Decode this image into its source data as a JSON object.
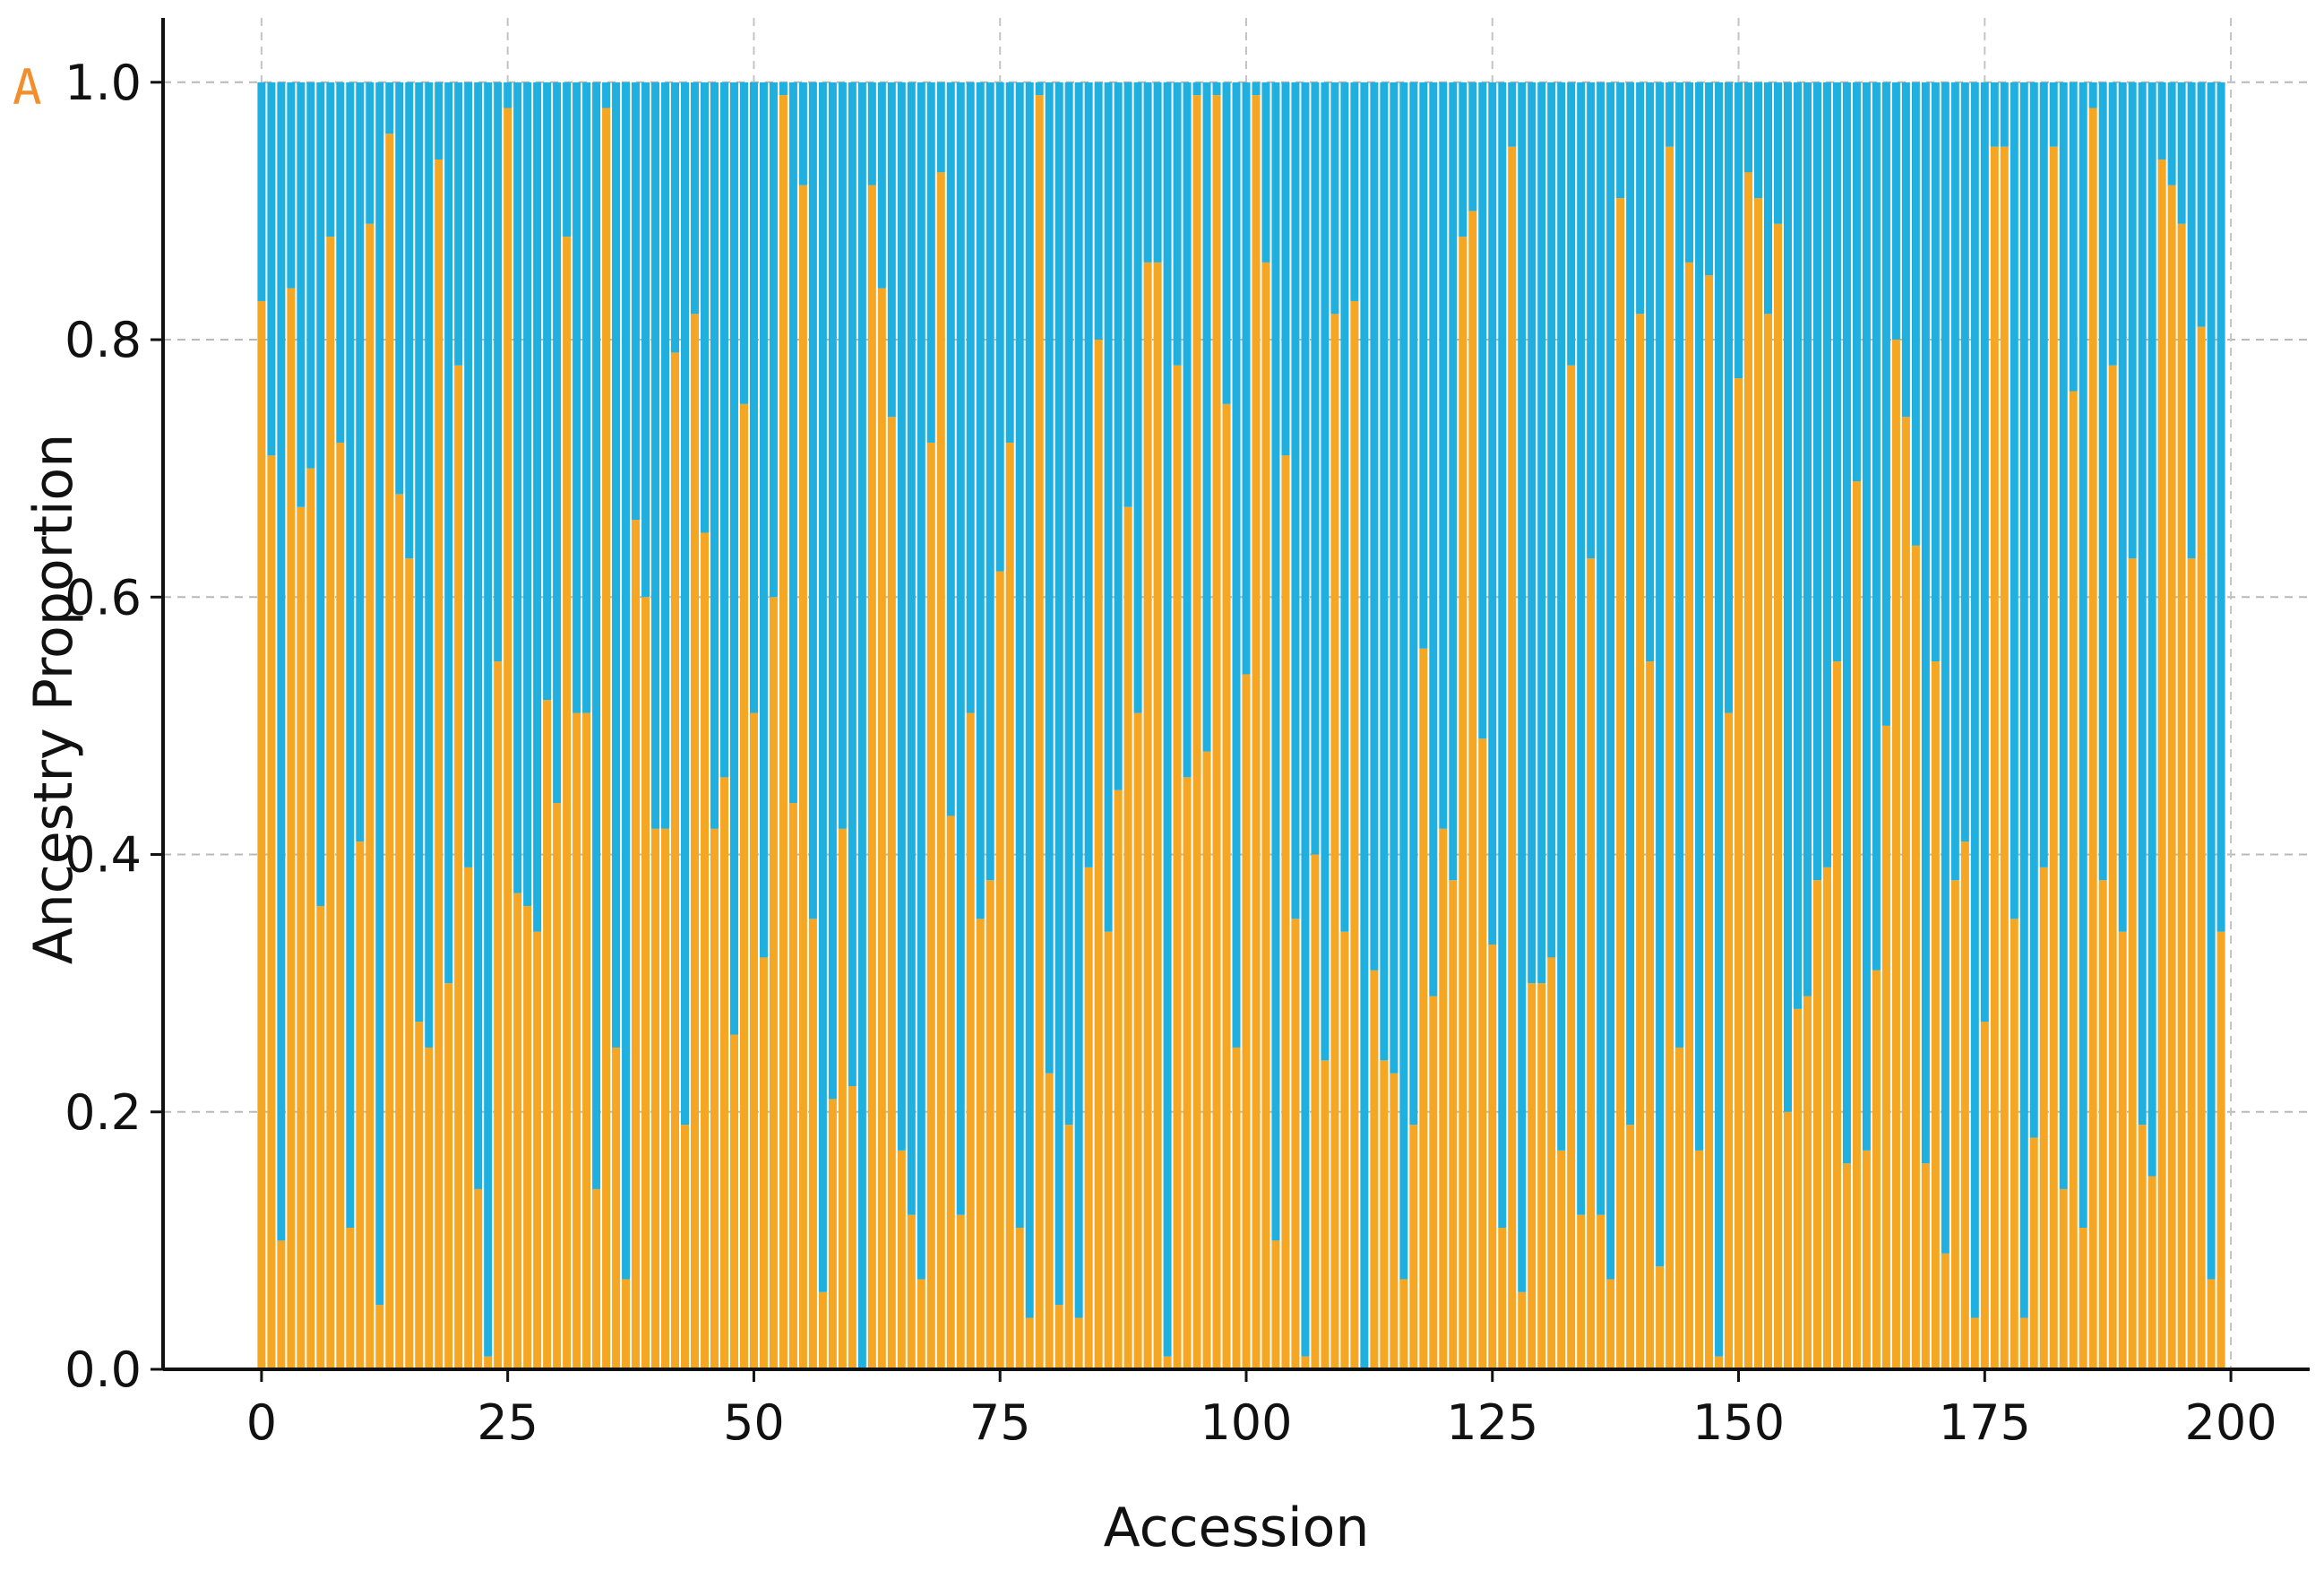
{
  "panel_label": "A",
  "chart_data": {
    "type": "bar",
    "stacked": true,
    "xlabel": "Accession",
    "ylabel": "Ancestry Proportion",
    "xlim": [
      -10,
      208
    ],
    "ylim": [
      0,
      1.05
    ],
    "xticks": [
      0,
      25,
      50,
      75,
      100,
      125,
      150,
      175,
      200
    ],
    "yticks": [
      0.0,
      0.2,
      0.4,
      0.6,
      0.8,
      1.0
    ],
    "ytick_labels": [
      "0.0",
      "0.2",
      "0.4",
      "0.6",
      "0.8",
      "1.0"
    ],
    "grid": true,
    "colors": {
      "series_1": "#f5a623",
      "series_2": "#1fb0e0"
    },
    "x": [
      0,
      1,
      2,
      3,
      4,
      5,
      6,
      7,
      8,
      9,
      10,
      11,
      12,
      13,
      14,
      15,
      16,
      17,
      18,
      19,
      20,
      21,
      22,
      23,
      24,
      25,
      26,
      27,
      28,
      29,
      30,
      31,
      32,
      33,
      34,
      35,
      36,
      37,
      38,
      39,
      40,
      41,
      42,
      43,
      44,
      45,
      46,
      47,
      48,
      49,
      50,
      51,
      52,
      53,
      54,
      55,
      56,
      57,
      58,
      59,
      60,
      61,
      62,
      63,
      64,
      65,
      66,
      67,
      68,
      69,
      70,
      71,
      72,
      73,
      74,
      75,
      76,
      77,
      78,
      79,
      80,
      81,
      82,
      83,
      84,
      85,
      86,
      87,
      88,
      89,
      90,
      91,
      92,
      93,
      94,
      95,
      96,
      97,
      98,
      99,
      100,
      101,
      102,
      103,
      104,
      105,
      106,
      107,
      108,
      109,
      110,
      111,
      112,
      113,
      114,
      115,
      116,
      117,
      118,
      119,
      120,
      121,
      122,
      123,
      124,
      125,
      126,
      127,
      128,
      129,
      130,
      131,
      132,
      133,
      134,
      135,
      136,
      137,
      138,
      139,
      140,
      141,
      142,
      143,
      144,
      145,
      146,
      147,
      148,
      149,
      150,
      151,
      152,
      153,
      154,
      155,
      156,
      157,
      158,
      159,
      160,
      161,
      162,
      163,
      164,
      165,
      166,
      167,
      168,
      169,
      170,
      171,
      172,
      173,
      174,
      175,
      176,
      177,
      178,
      179,
      180,
      181,
      182,
      183,
      184,
      185,
      186,
      187,
      188,
      189,
      190,
      191,
      192,
      193,
      194,
      195,
      196,
      197,
      198,
      199
    ],
    "series": [
      {
        "values": [
          0.83,
          0.71,
          0.1,
          0.84,
          0.67,
          0.7,
          0.36,
          0.88,
          0.72,
          0.11,
          0.41,
          0.89,
          0.05,
          0.96,
          0.68,
          0.63,
          0.27,
          0.25,
          0.94,
          0.3,
          0.78,
          0.39,
          0.14,
          0.01,
          0.55,
          0.98,
          0.37,
          0.36,
          0.34,
          0.52,
          0.44,
          0.88,
          0.51,
          0.51,
          0.14,
          0.98,
          0.25,
          0.07,
          0.66,
          0.6,
          0.42,
          0.42,
          0.79,
          0.19,
          0.82,
          0.65,
          0.42,
          0.46,
          0.26,
          0.75,
          0.51,
          0.32,
          0.6,
          0.99,
          0.44,
          0.92,
          0.35,
          0.06,
          0.21,
          0.42,
          0.22,
          0.0,
          0.92,
          0.84,
          0.74,
          0.17,
          0.12,
          0.07,
          0.72,
          0.93,
          0.43,
          0.12,
          0.51,
          0.35,
          0.38,
          0.62,
          0.72,
          0.11,
          0.04,
          0.99,
          0.23,
          0.05,
          0.19,
          0.04,
          0.39,
          0.8,
          0.34,
          0.45,
          0.67,
          0.51,
          0.86,
          0.86,
          0.01,
          0.78,
          0.46,
          0.99,
          0.48,
          0.99,
          0.75,
          0.25,
          0.54,
          0.99,
          0.86,
          0.1,
          0.71,
          0.35,
          0.01,
          0.4,
          0.24,
          0.82,
          0.34,
          0.83,
          0.0,
          0.31,
          0.24,
          0.23,
          0.07,
          0.19,
          0.56,
          0.29,
          0.42,
          0.38,
          0.88,
          0.9,
          0.49,
          0.33,
          0.11,
          0.95,
          0.06,
          0.3,
          0.3,
          0.32,
          0.17,
          0.78,
          0.12,
          0.63,
          0.12,
          0.07,
          0.91,
          0.19,
          0.82,
          0.55,
          0.08,
          0.95,
          0.25,
          0.86,
          0.17,
          0.85,
          0.01,
          0.51,
          0.77,
          0.93,
          0.91,
          0.82,
          0.89,
          0.2,
          0.28,
          0.29,
          0.38,
          0.39,
          0.55,
          0.16,
          0.69,
          0.17,
          0.31,
          0.5,
          0.8,
          0.74,
          0.64,
          0.16,
          0.55,
          0.09,
          0.38,
          0.41,
          0.04,
          0.27,
          0.95,
          0.95,
          0.35,
          0.04,
          0.18,
          0.39,
          0.95,
          0.14,
          0.76,
          0.11,
          0.98,
          0.38,
          0.78,
          0.34,
          0.63,
          0.19,
          0.15,
          0.94,
          0.92,
          0.89,
          0.63,
          0.81,
          0.07,
          0.34
        ]
      },
      {
        "values": [
          0.17,
          0.29,
          0.9,
          0.16,
          0.33,
          0.3,
          0.64,
          0.12,
          0.28,
          0.89,
          0.59,
          0.11,
          0.95,
          0.04,
          0.32,
          0.37,
          0.73,
          0.75,
          0.06,
          0.7,
          0.22,
          0.61,
          0.86,
          0.99,
          0.45,
          0.02,
          0.63,
          0.64,
          0.66,
          0.48,
          0.56,
          0.12,
          0.49,
          0.49,
          0.86,
          0.02,
          0.75,
          0.93,
          0.34,
          0.4,
          0.58,
          0.58,
          0.21,
          0.81,
          0.18,
          0.35,
          0.58,
          0.54,
          0.74,
          0.25,
          0.49,
          0.68,
          0.4,
          0.01,
          0.56,
          0.08,
          0.65,
          0.94,
          0.79,
          0.58,
          0.78,
          1.0,
          0.08,
          0.16,
          0.26,
          0.83,
          0.88,
          0.93,
          0.28,
          0.07,
          0.57,
          0.88,
          0.49,
          0.65,
          0.62,
          0.38,
          0.28,
          0.89,
          0.96,
          0.01,
          0.77,
          0.95,
          0.81,
          0.96,
          0.61,
          0.2,
          0.66,
          0.55,
          0.33,
          0.49,
          0.14,
          0.14,
          0.99,
          0.22,
          0.54,
          0.01,
          0.52,
          0.01,
          0.25,
          0.75,
          0.46,
          0.01,
          0.14,
          0.9,
          0.29,
          0.65,
          0.99,
          0.6,
          0.76,
          0.18,
          0.66,
          0.17,
          1.0,
          0.69,
          0.76,
          0.77,
          0.93,
          0.81,
          0.44,
          0.71,
          0.58,
          0.62,
          0.12,
          0.1,
          0.51,
          0.67,
          0.89,
          0.05,
          0.94,
          0.7,
          0.7,
          0.68,
          0.83,
          0.22,
          0.88,
          0.37,
          0.88,
          0.93,
          0.09,
          0.81,
          0.18,
          0.45,
          0.92,
          0.05,
          0.75,
          0.14,
          0.83,
          0.15,
          0.99,
          0.49,
          0.23,
          0.07,
          0.09,
          0.18,
          0.11,
          0.8,
          0.72,
          0.71,
          0.62,
          0.61,
          0.45,
          0.84,
          0.31,
          0.83,
          0.69,
          0.5,
          0.2,
          0.26,
          0.36,
          0.84,
          0.45,
          0.91,
          0.62,
          0.59,
          0.96,
          0.73,
          0.05,
          0.05,
          0.65,
          0.96,
          0.82,
          0.61,
          0.05,
          0.86,
          0.24,
          0.89,
          0.02,
          0.62,
          0.22,
          0.66,
          0.37,
          0.81,
          0.85,
          0.06,
          0.08,
          0.11,
          0.37,
          0.19,
          0.93,
          0.66
        ]
      }
    ]
  }
}
